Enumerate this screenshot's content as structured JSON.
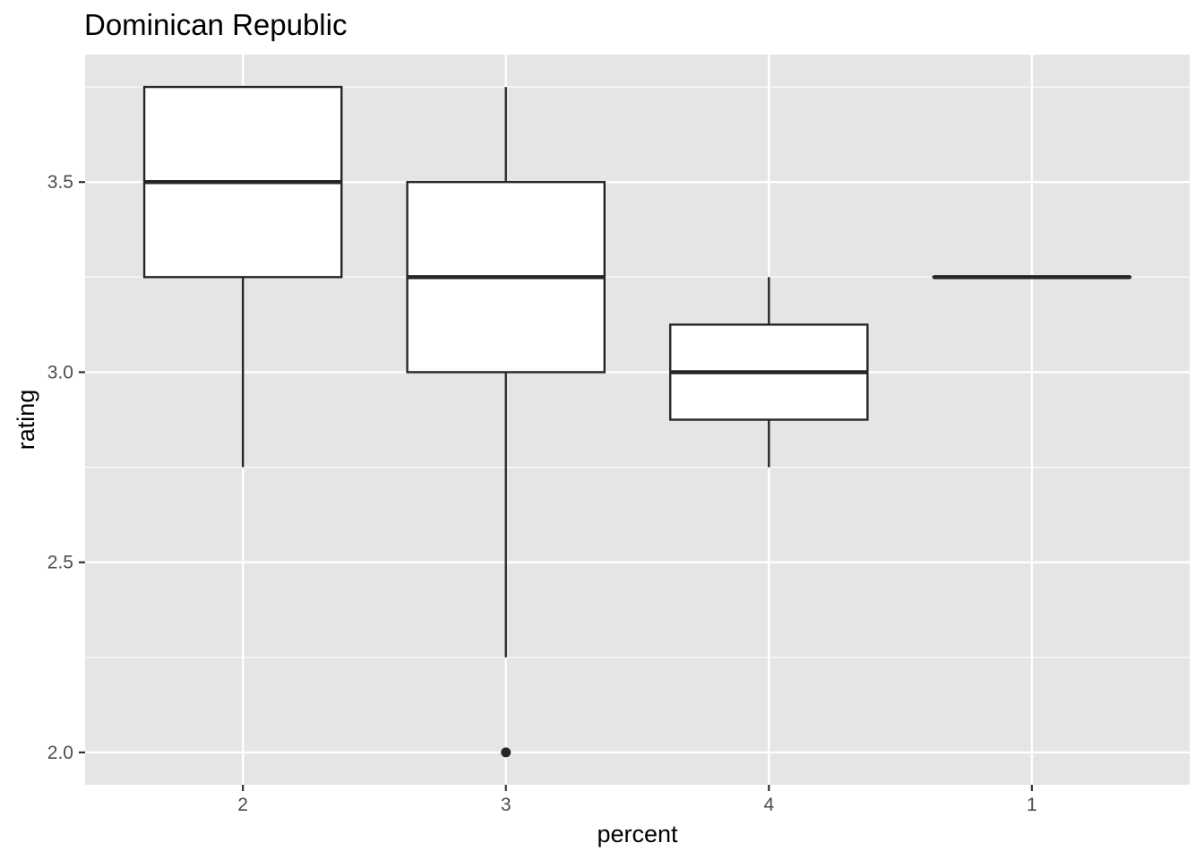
{
  "chart_data": {
    "type": "boxplot",
    "title": "Dominican Republic",
    "xlabel": "percent",
    "ylabel": "rating",
    "categories": [
      "2",
      "3",
      "4",
      "1"
    ],
    "yticks": [
      2.0,
      2.5,
      3.0,
      3.5
    ],
    "ytick_labels": [
      "2.0",
      "2.5",
      "3.0",
      "3.5"
    ],
    "ylim": [
      1.915,
      3.835
    ],
    "grid": true,
    "legend": "none",
    "boxes": [
      {
        "category": "2",
        "whisker_low": 2.75,
        "q1": 3.25,
        "median": 3.5,
        "q3": 3.75,
        "whisker_high": 3.75,
        "outliers": []
      },
      {
        "category": "3",
        "whisker_low": 2.25,
        "q1": 3.0,
        "median": 3.25,
        "q3": 3.5,
        "whisker_high": 3.75,
        "outliers": [
          2.0
        ]
      },
      {
        "category": "4",
        "whisker_low": 2.75,
        "q1": 2.875,
        "median": 3.0,
        "q3": 3.125,
        "whisker_high": 3.25,
        "outliers": []
      },
      {
        "category": "1",
        "whisker_low": 3.25,
        "q1": 3.25,
        "median": 3.25,
        "q3": 3.25,
        "whisker_high": 3.25,
        "outliers": []
      }
    ],
    "colors": {
      "panel": "#e5e5e5",
      "grid": "#ffffff",
      "box_fill": "#ffffff",
      "box_stroke": "#262626",
      "tick": "#333333"
    }
  }
}
